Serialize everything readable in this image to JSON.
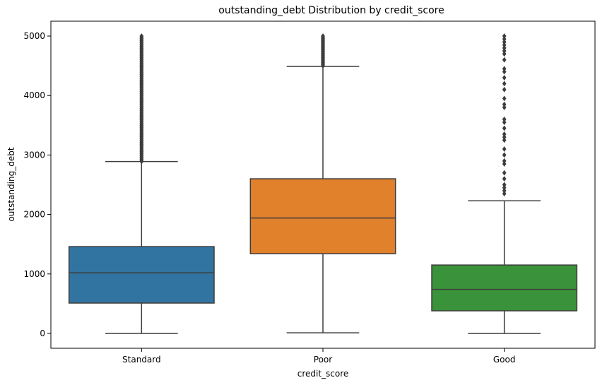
{
  "chart_data": {
    "type": "box",
    "title": "outstanding_debt Distribution by credit_score",
    "xlabel": "credit_score",
    "ylabel": "outstanding_debt",
    "ylim": [
      -250,
      5250
    ],
    "yticks": [
      0,
      1000,
      2000,
      3000,
      4000,
      5000
    ],
    "grid": false,
    "categories": [
      "Standard",
      "Poor",
      "Good"
    ],
    "boxes": [
      {
        "category": "Standard",
        "color": "#3274a1",
        "whisker_low": 0,
        "q1": 510,
        "median": 1020,
        "q3": 1460,
        "whisker_high": 2890,
        "outlier_range": [
          2890,
          5000
        ],
        "outliers": []
      },
      {
        "category": "Poor",
        "color": "#e1812c",
        "whisker_low": 10,
        "q1": 1340,
        "median": 1940,
        "q3": 2600,
        "whisker_high": 4490,
        "outlier_range": [
          4500,
          5000
        ],
        "outliers": []
      },
      {
        "category": "Good",
        "color": "#3a923a",
        "whisker_low": 0,
        "q1": 380,
        "median": 740,
        "q3": 1150,
        "whisker_high": 2230,
        "outlier_range": [],
        "outliers": [
          2350,
          2400,
          2450,
          2500,
          2600,
          2700,
          2850,
          2900,
          3000,
          3100,
          3250,
          3300,
          3350,
          3450,
          3550,
          3600,
          3800,
          3850,
          3950,
          4100,
          4200,
          4300,
          4400,
          4450,
          4600,
          4700,
          4750,
          4800,
          4850,
          4900,
          4950,
          5000
        ]
      }
    ]
  }
}
